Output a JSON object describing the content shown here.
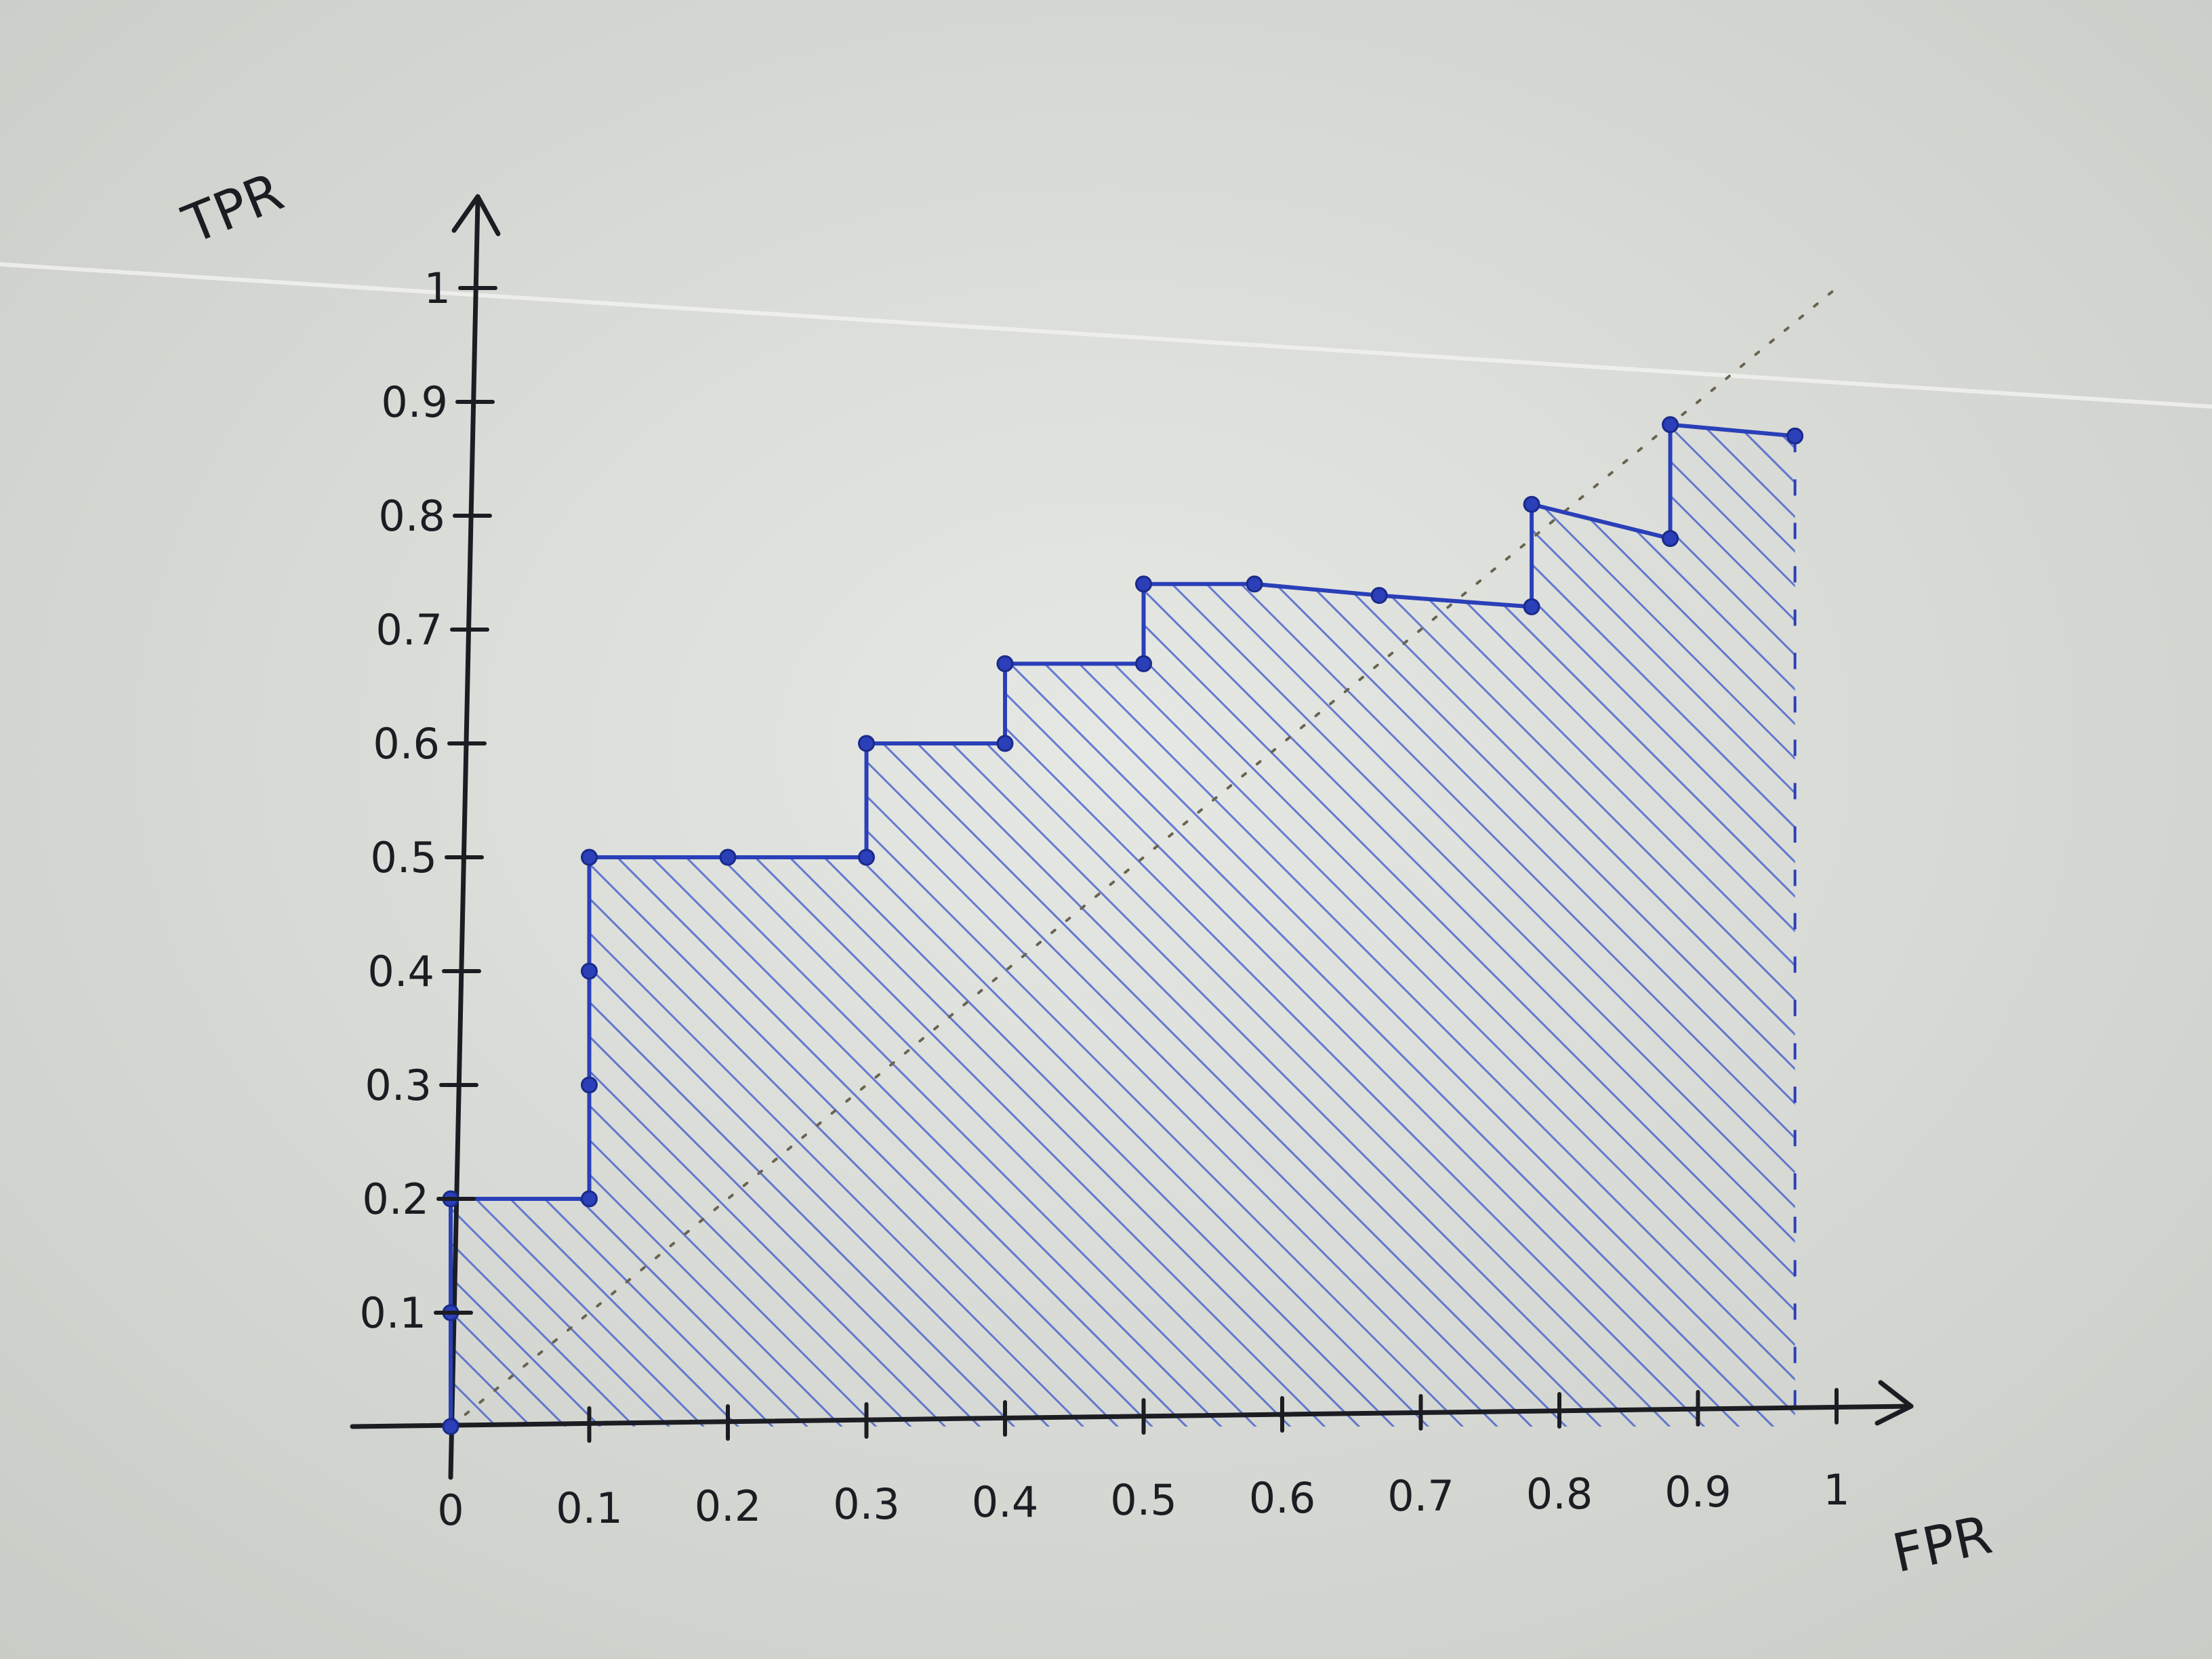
{
  "chart_data": {
    "type": "area",
    "title": "",
    "xlabel": "FPR",
    "ylabel": "TPR",
    "xlim": [
      0,
      1
    ],
    "ylim": [
      0,
      1
    ],
    "x_ticks": [
      "0",
      "0.1",
      "0.2",
      "0.3",
      "0.4",
      "0.5",
      "0.6",
      "0.7",
      "0.8",
      "0.9",
      "1"
    ],
    "y_ticks": [
      "0.1",
      "0.2",
      "0.3",
      "0.4",
      "0.5",
      "0.6",
      "0.7",
      "0.8",
      "0.9",
      "1"
    ],
    "grid": false,
    "series": [
      {
        "x": [
          0,
          0,
          0,
          0.1,
          0.1,
          0.1,
          0.1,
          0.2,
          0.3,
          0.3,
          0.4,
          0.4,
          0.5,
          0.5,
          0.58,
          0.67,
          0.78,
          0.78,
          0.88,
          0.88,
          0.97
        ],
        "y": [
          0,
          0.1,
          0.2,
          0.2,
          0.3,
          0.4,
          0.5,
          0.5,
          0.5,
          0.6,
          0.6,
          0.67,
          0.67,
          0.74,
          0.74,
          0.73,
          0.72,
          0.81,
          0.78,
          0.88,
          0.87
        ]
      }
    ],
    "diagonal": {
      "x": [
        0,
        1
      ],
      "y": [
        0,
        1
      ]
    },
    "colors": {
      "curve": "#2a3fb8",
      "hatch": "#3a55c8",
      "axes": "#1b1d22",
      "paper": "#dde0dc"
    }
  }
}
